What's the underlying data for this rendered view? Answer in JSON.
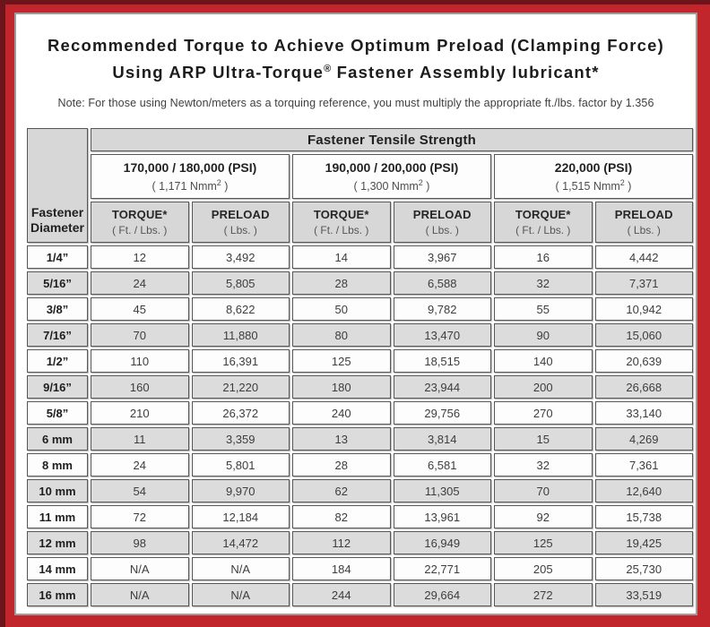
{
  "title": {
    "line1": "Recommended Torque to Achieve Optimum Preload (Clamping Force)",
    "line2_pre": "Using ARP Ultra-Torque",
    "line2_sup": "®",
    "line2_post": " Fastener Assembly lubricant*"
  },
  "note": "Note: For those using Newton/meters as a torquing reference, you must multiply the appropriate ft./lbs. factor by 1.356",
  "table": {
    "tensile_header": "Fastener Tensile Strength",
    "diameter_header": {
      "line1": "Fastener",
      "line2": "Diameter"
    },
    "groups": [
      {
        "psi": "170,000 / 180,000 (PSI)",
        "nmm_pre": "( 1,171 Nmm",
        "nmm_sup": "2",
        "nmm_post": " )"
      },
      {
        "psi": "190,000 / 200,000 (PSI)",
        "nmm_pre": "( 1,300 Nmm",
        "nmm_sup": "2",
        "nmm_post": " )"
      },
      {
        "psi": "220,000 (PSI)",
        "nmm_pre": "( 1,515 Nmm",
        "nmm_sup": "2",
        "nmm_post": " )"
      }
    ],
    "torque_header": {
      "label": "TORQUE*",
      "sub": "( Ft. / Lbs. )"
    },
    "preload_header": {
      "label": "PRELOAD",
      "sub": "( Lbs. )"
    },
    "rows": [
      {
        "diameter": "1/4”",
        "values": [
          "12",
          "3,492",
          "14",
          "3,967",
          "16",
          "4,442"
        ]
      },
      {
        "diameter": "5/16”",
        "values": [
          "24",
          "5,805",
          "28",
          "6,588",
          "32",
          "7,371"
        ]
      },
      {
        "diameter": "3/8”",
        "values": [
          "45",
          "8,622",
          "50",
          "9,782",
          "55",
          "10,942"
        ]
      },
      {
        "diameter": "7/16”",
        "values": [
          "70",
          "11,880",
          "80",
          "13,470",
          "90",
          "15,060"
        ]
      },
      {
        "diameter": "1/2”",
        "values": [
          "110",
          "16,391",
          "125",
          "18,515",
          "140",
          "20,639"
        ]
      },
      {
        "diameter": "9/16”",
        "values": [
          "160",
          "21,220",
          "180",
          "23,944",
          "200",
          "26,668"
        ]
      },
      {
        "diameter": "5/8”",
        "values": [
          "210",
          "26,372",
          "240",
          "29,756",
          "270",
          "33,140"
        ]
      },
      {
        "diameter": "6 mm",
        "values": [
          "11",
          "3,359",
          "13",
          "3,814",
          "15",
          "4,269"
        ]
      },
      {
        "diameter": "8 mm",
        "values": [
          "24",
          "5,801",
          "28",
          "6,581",
          "32",
          "7,361"
        ]
      },
      {
        "diameter": "10 mm",
        "values": [
          "54",
          "9,970",
          "62",
          "11,305",
          "70",
          "12,640"
        ]
      },
      {
        "diameter": "11 mm",
        "values": [
          "72",
          "12,184",
          "82",
          "13,961",
          "92",
          "15,738"
        ]
      },
      {
        "diameter": "12 mm",
        "values": [
          "98",
          "14,472",
          "112",
          "16,949",
          "125",
          "19,425"
        ]
      },
      {
        "diameter": "14 mm",
        "values": [
          "N/A",
          "N/A",
          "184",
          "22,771",
          "205",
          "25,730"
        ]
      },
      {
        "diameter": "16 mm",
        "values": [
          "N/A",
          "N/A",
          "244",
          "29,664",
          "272",
          "33,519"
        ]
      }
    ]
  },
  "colors": {
    "frame_red": "#c0262c",
    "frame_dark_edge": "#6b141a",
    "header_gray": "#d7d7d7",
    "row_alt_gray": "#dcdcdc",
    "cell_border": "#565656",
    "sheet_border": "#9c9c9c"
  }
}
